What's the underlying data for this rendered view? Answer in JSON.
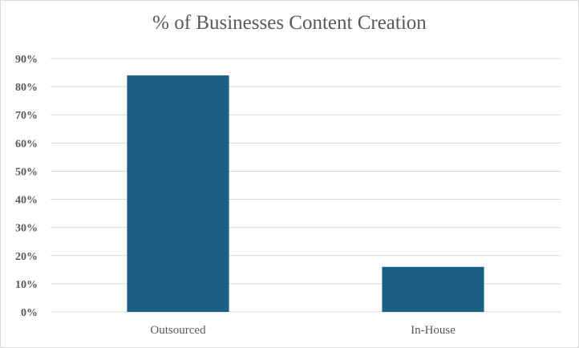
{
  "chart_data": {
    "type": "bar",
    "title": "% of Businesses Content Creation",
    "categories": [
      "Outsourced",
      "In-House"
    ],
    "values": [
      84,
      16
    ],
    "ylim": [
      0,
      90
    ],
    "yticks": [
      "0%",
      "10%",
      "20%",
      "30%",
      "40%",
      "50%",
      "60%",
      "70%",
      "80%",
      "90%"
    ],
    "xlabel": "",
    "ylabel": "",
    "grid": true,
    "legend": "none",
    "bar_color": "#1a6084",
    "grid_color": "#d9d9d9",
    "text_color": "#595959"
  }
}
